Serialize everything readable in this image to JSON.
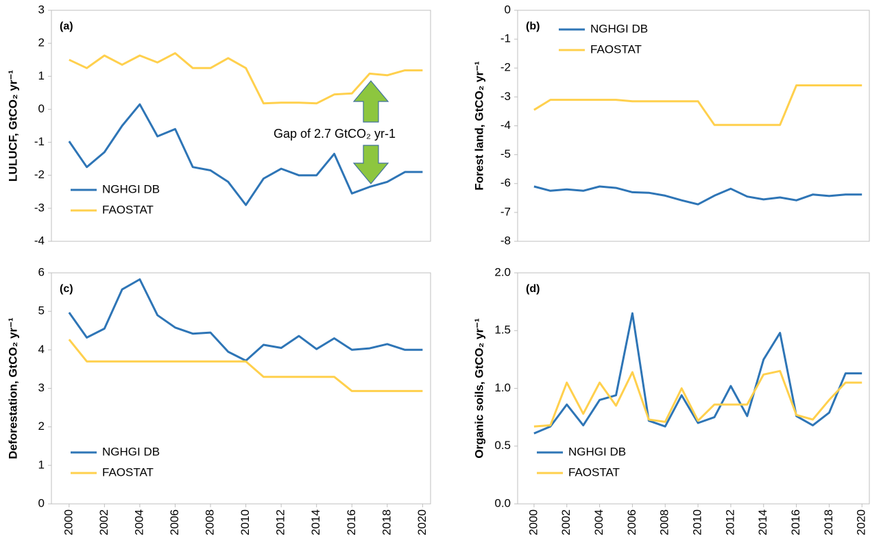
{
  "chart_data": [
    {
      "type": "line",
      "panel": "(a)",
      "ylabel": "LULUCF, GtCO₂ yr⁻¹",
      "x": [
        2000,
        2001,
        2002,
        2003,
        2004,
        2005,
        2006,
        2007,
        2008,
        2009,
        2010,
        2011,
        2012,
        2013,
        2014,
        2015,
        2016,
        2017,
        2018,
        2019,
        2020
      ],
      "xlim": [
        1999,
        2020.45
      ],
      "ylim": [
        -4,
        3
      ],
      "yticks": [
        -4,
        -3,
        -2,
        -1,
        0,
        1,
        2,
        3
      ],
      "legend": "lower left",
      "series": [
        {
          "name": "NGHGI DB",
          "color": "#2e75b6",
          "values": [
            -0.97,
            -1.75,
            -1.3,
            -0.5,
            0.15,
            -0.82,
            -0.6,
            -1.75,
            -1.85,
            -2.2,
            -2.9,
            -2.1,
            -1.8,
            -2.0,
            -2.0,
            -1.35,
            -2.55,
            -2.35,
            -2.2,
            -1.9,
            -1.9
          ]
        },
        {
          "name": "FAOSTAT",
          "color": "#ffd04d",
          "values": [
            1.5,
            1.25,
            1.63,
            1.35,
            1.63,
            1.42,
            1.7,
            1.25,
            1.25,
            1.55,
            1.25,
            0.18,
            0.2,
            0.2,
            0.18,
            0.45,
            0.48,
            1.08,
            1.03,
            1.18,
            1.18
          ]
        }
      ],
      "annotation": {
        "text": "Gap of 2.7 GtCO₂ yr-1",
        "color": "#2db84b"
      }
    },
    {
      "type": "line",
      "panel": "(b)",
      "ylabel": "Forest land, GtCO₂ yr⁻¹",
      "x": [
        2000,
        2001,
        2002,
        2003,
        2004,
        2005,
        2006,
        2007,
        2008,
        2009,
        2010,
        2011,
        2012,
        2013,
        2014,
        2015,
        2016,
        2017,
        2018,
        2019,
        2020
      ],
      "xlim": [
        1999,
        2020.45
      ],
      "ylim": [
        -8,
        0
      ],
      "yticks": [
        -8,
        -7,
        -6,
        -5,
        -4,
        -3,
        -2,
        -1,
        0
      ],
      "legend": "upper center",
      "series": [
        {
          "name": "NGHGI DB",
          "color": "#2e75b6",
          "values": [
            -6.1,
            -6.25,
            -6.2,
            -6.25,
            -6.1,
            -6.15,
            -6.3,
            -6.32,
            -6.42,
            -6.58,
            -6.72,
            -6.42,
            -6.18,
            -6.45,
            -6.55,
            -6.48,
            -6.58,
            -6.38,
            -6.43,
            -6.38,
            -6.38
          ]
        },
        {
          "name": "FAOSTAT",
          "color": "#ffd04d",
          "values": [
            -3.45,
            -3.1,
            -3.1,
            -3.1,
            -3.1,
            -3.1,
            -3.15,
            -3.15,
            -3.15,
            -3.15,
            -3.15,
            -3.97,
            -3.97,
            -3.97,
            -3.97,
            -3.97,
            -2.6,
            -2.6,
            -2.6,
            -2.6,
            -2.6
          ]
        }
      ]
    },
    {
      "type": "line",
      "panel": "(c)",
      "ylabel": "Deforestation, GtCO₂ yr⁻¹",
      "x": [
        2000,
        2001,
        2002,
        2003,
        2004,
        2005,
        2006,
        2007,
        2008,
        2009,
        2010,
        2011,
        2012,
        2013,
        2014,
        2015,
        2016,
        2017,
        2018,
        2019,
        2020
      ],
      "xlim": [
        1999,
        2020.45
      ],
      "xticks": [
        2000,
        2002,
        2004,
        2006,
        2008,
        2010,
        2012,
        2014,
        2016,
        2018,
        2020
      ],
      "ylim": [
        0,
        6
      ],
      "yticks": [
        0,
        1,
        2,
        3,
        4,
        5,
        6
      ],
      "legend": "lower left",
      "series": [
        {
          "name": "NGHGI DB",
          "color": "#2e75b6",
          "values": [
            4.97,
            4.32,
            4.55,
            5.57,
            5.83,
            4.9,
            4.58,
            4.42,
            4.45,
            3.95,
            3.72,
            4.13,
            4.05,
            4.36,
            4.02,
            4.3,
            4.0,
            4.04,
            4.15,
            4.0,
            4.0
          ]
        },
        {
          "name": "FAOSTAT",
          "color": "#ffd04d",
          "values": [
            4.27,
            3.7,
            3.7,
            3.7,
            3.7,
            3.7,
            3.7,
            3.7,
            3.7,
            3.7,
            3.7,
            3.3,
            3.3,
            3.3,
            3.3,
            3.3,
            2.93,
            2.93,
            2.93,
            2.93,
            2.93
          ]
        }
      ]
    },
    {
      "type": "line",
      "panel": "(d)",
      "ylabel": "Organic soils, GtCO₂ yr⁻¹",
      "x": [
        2000,
        2001,
        2002,
        2003,
        2004,
        2005,
        2006,
        2007,
        2008,
        2009,
        2010,
        2011,
        2012,
        2013,
        2014,
        2015,
        2016,
        2017,
        2018,
        2019,
        2020
      ],
      "xlim": [
        1999,
        2020.45
      ],
      "xticks": [
        2000,
        2002,
        2004,
        2006,
        2008,
        2010,
        2012,
        2014,
        2016,
        2018,
        2020
      ],
      "ylim": [
        0,
        2
      ],
      "yticks": [
        {
          "value": 0,
          "label": "0.0"
        },
        0.5,
        {
          "value": 1,
          "label": "1.0"
        },
        1.5,
        {
          "value": 2,
          "label": "2.0"
        }
      ],
      "legend": "lower left",
      "series": [
        {
          "name": "NGHGI DB",
          "color": "#2e75b6",
          "values": [
            0.61,
            0.67,
            0.86,
            0.68,
            0.9,
            0.94,
            1.65,
            0.72,
            0.67,
            0.94,
            0.7,
            0.75,
            1.02,
            0.76,
            1.25,
            1.48,
            0.76,
            0.68,
            0.79,
            1.13,
            1.13
          ]
        },
        {
          "name": "FAOSTAT",
          "color": "#ffd04d",
          "values": [
            0.67,
            0.68,
            1.05,
            0.78,
            1.05,
            0.85,
            1.14,
            0.73,
            0.71,
            1.0,
            0.72,
            0.86,
            0.86,
            0.86,
            1.12,
            1.15,
            0.77,
            0.73,
            0.9,
            1.05,
            1.05
          ]
        }
      ]
    }
  ]
}
